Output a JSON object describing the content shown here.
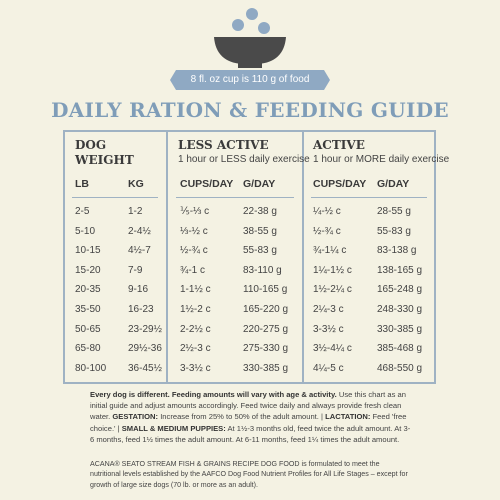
{
  "header": {
    "cup_note": "8 fl. oz cup is 110 g of food",
    "title": "DAILY RATION & FEEDING GUIDE"
  },
  "table": {
    "groups": [
      {
        "title": "DOG WEIGHT"
      },
      {
        "title": "LESS ACTIVE",
        "subtitle": "1 hour or LESS daily exercise"
      },
      {
        "title": "ACTIVE",
        "subtitle": "1 hour or MORE daily exercise"
      }
    ],
    "columns": [
      "LB",
      "KG",
      "CUPS/DAY",
      "G/DAY",
      "CUPS/DAY",
      "G/DAY"
    ],
    "rows": [
      [
        "2-5",
        "1-2",
        "⅕-⅓ c",
        "22-38 g",
        "¼-½ c",
        "28-55 g"
      ],
      [
        "5-10",
        "2-4½",
        "⅓-½ c",
        "38-55 g",
        "½-¾ c",
        "55-83 g"
      ],
      [
        "10-15",
        "4½-7",
        "½-¾ c",
        "55-83 g",
        "¾-1¼ c",
        "83-138 g"
      ],
      [
        "15-20",
        "7-9",
        "¾-1 c",
        "83-110 g",
        "1¼-1½ c",
        "138-165 g"
      ],
      [
        "20-35",
        "9-16",
        "1-1½ c",
        "110-165 g",
        "1½-2¼ c",
        "165-248 g"
      ],
      [
        "35-50",
        "16-23",
        "1½-2 c",
        "165-220 g",
        "2¼-3 c",
        "248-330 g"
      ],
      [
        "50-65",
        "23-29½",
        "2-2½ c",
        "220-275 g",
        "3-3½ c",
        "330-385 g"
      ],
      [
        "65-80",
        "29½-36",
        "2½-3 c",
        "275-330 g",
        "3½-4¼ c",
        "385-468 g"
      ],
      [
        "80-100",
        "36-45½",
        "3-3½ c",
        "330-385 g",
        "4¼-5 c",
        "468-550 g"
      ]
    ]
  },
  "notes": {
    "paragraph_1": [
      {
        "bold": "Every dog is different. Feeding amounts will vary with age & activity."
      },
      {
        "text": " Use this chart as an initial guide and adjust amounts accordingly. Feed twice daily and always provide fresh clean water. "
      },
      {
        "bold": "GESTATION:"
      },
      {
        "text": " Increase from 25% to 50% of the adult amount. | "
      },
      {
        "bold": "LACTATION:"
      },
      {
        "text": " Feed 'free choice.' | "
      },
      {
        "bold": "SMALL & MEDIUM PUPPIES:"
      },
      {
        "text": " At 1½-3 months old, feed twice the adult amount. At 3-6 months, feed 1½ times the adult amount. At 6-11 months, feed 1¼ times the adult amount."
      }
    ],
    "paragraph_2": "ACANA® SEATO STREAM FISH & GRAINS RECIPE DOG FOOD is formulated to meet the nutritional levels established by the AAFCO Dog Food Nutrient Profiles for All Life Stages – except for growth of large size dogs (70 lb. or more as an adult)."
  }
}
